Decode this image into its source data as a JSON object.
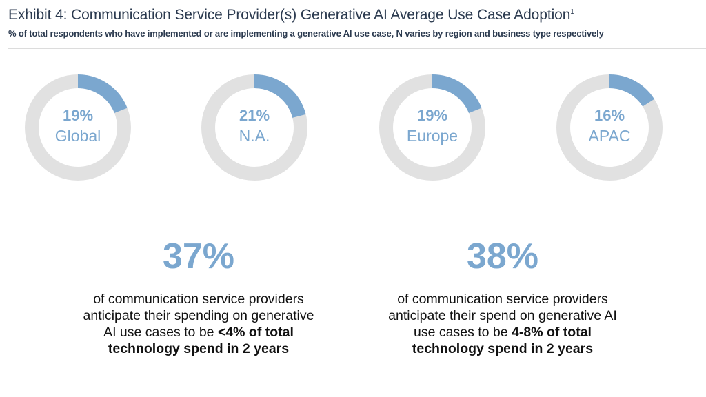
{
  "header": {
    "title": "Exhibit 4: Communication Service Provider(s) Generative AI Average Use Case Adoption",
    "title_footnote": "1",
    "subtitle": "% of total respondents who have implemented or are implementing a generative AI use case, N varies by region and business type respectively"
  },
  "colors": {
    "accent": "#7ba7cf",
    "track": "#e1e1e1",
    "title": "#2b3a4f"
  },
  "chart_data": {
    "type": "pie",
    "categories": [
      "Global",
      "N.A.",
      "Europe",
      "APAC"
    ],
    "values": [
      19,
      21,
      19,
      16
    ],
    "value_labels": [
      "19%",
      "21%",
      "19%",
      "16%"
    ],
    "unit": "%"
  },
  "stats": [
    {
      "value": "37%",
      "text_lines": [
        "of communication service providers",
        "anticipate their spending on generative"
      ],
      "text_prefix": "AI use cases to be ",
      "text_bold_1": "<4% of total",
      "text_bold_2": "technology spend in 2 years"
    },
    {
      "value": "38%",
      "text_lines": [
        "of communication service providers",
        "anticipate their spend on generative AI"
      ],
      "text_prefix": "use cases to be ",
      "text_bold_1": "4-8% of total",
      "text_bold_2": "technology spend in 2 years"
    }
  ]
}
